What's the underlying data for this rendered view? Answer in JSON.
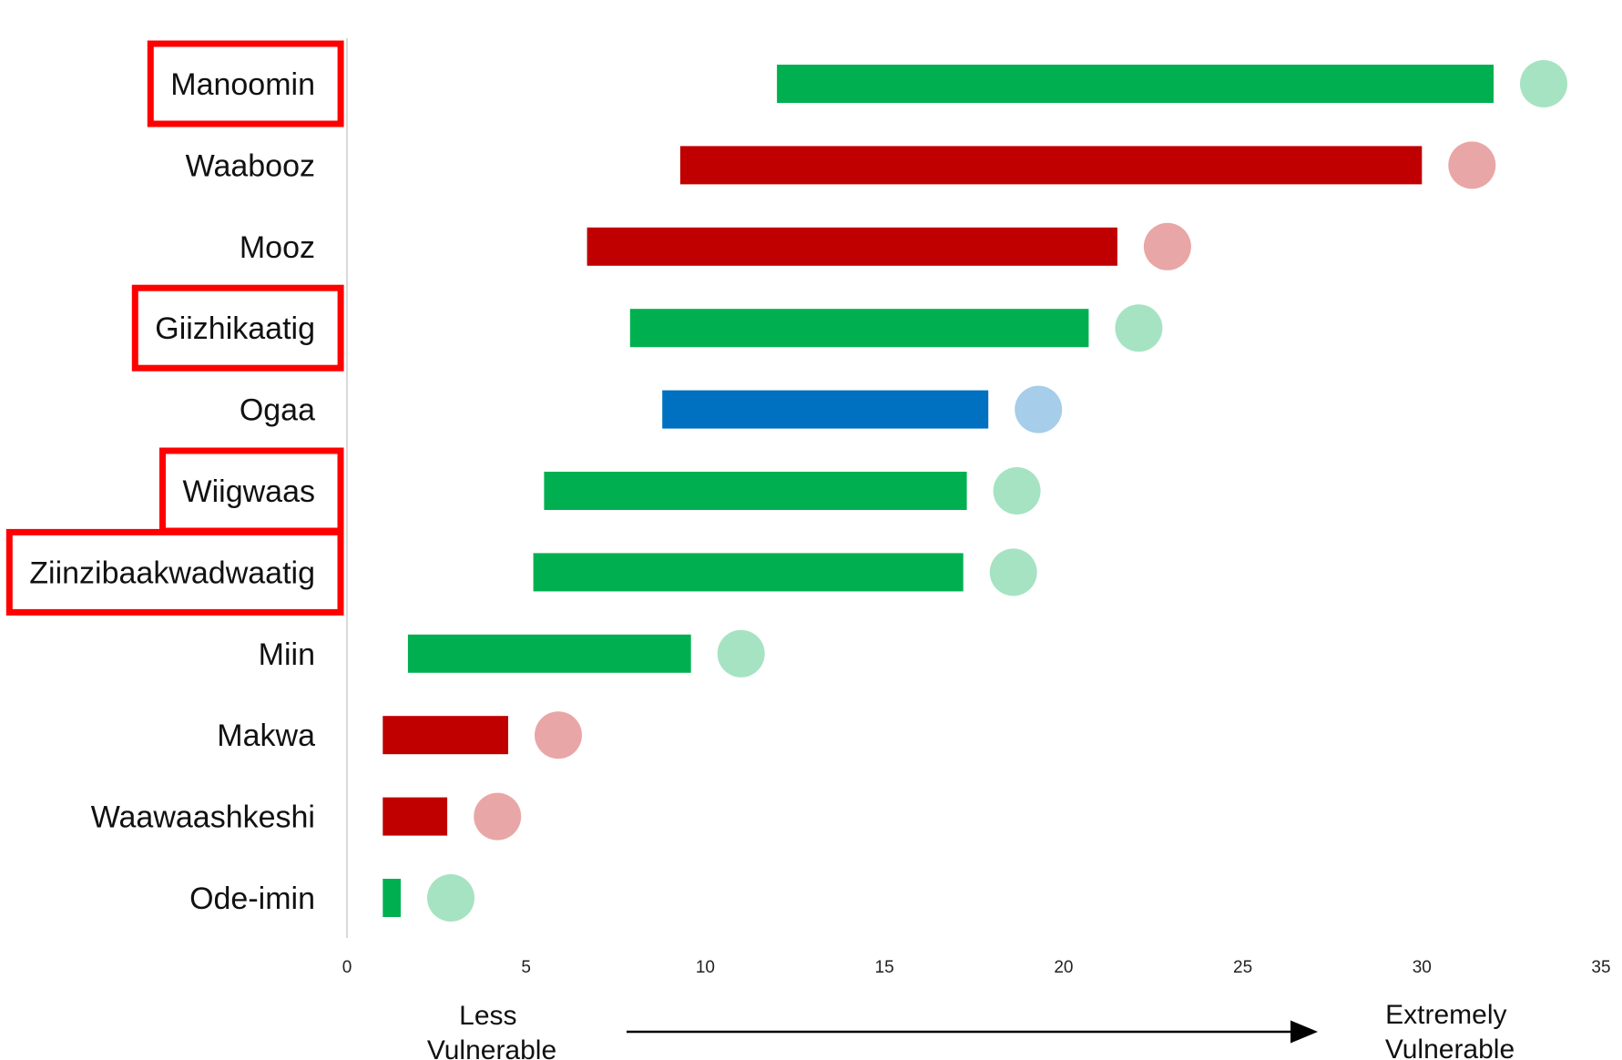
{
  "chart_data": {
    "type": "bar",
    "orientation": "horizontal-floating",
    "categories": [
      "Manoomin",
      "Waabooz",
      "Mooz",
      "Giizhikaatig",
      "Ogaa",
      "Wiigwaas",
      "Ziinzibaakwadwaatig",
      "Miin",
      "Makwa",
      "Waawaashkeshi",
      "Ode-imin"
    ],
    "ranges": [
      [
        12.0,
        32.0
      ],
      [
        9.3,
        30.0
      ],
      [
        6.7,
        21.5
      ],
      [
        7.9,
        20.7
      ],
      [
        8.8,
        17.9
      ],
      [
        5.5,
        17.3
      ],
      [
        5.2,
        17.2
      ],
      [
        1.7,
        9.6
      ],
      [
        1.0,
        4.5
      ],
      [
        1.0,
        2.8
      ],
      [
        1.0,
        1.5
      ]
    ],
    "bar_colors": [
      "#00b050",
      "#c00000",
      "#c00000",
      "#00b050",
      "#0070c0",
      "#00b050",
      "#00b050",
      "#00b050",
      "#c00000",
      "#c00000",
      "#00b050"
    ],
    "highlighted": [
      "Manoomin",
      "Giizhikaatig",
      "Wiigwaas",
      "Ziinzibaakwadwaatig"
    ],
    "highlight_color": "#ff0000",
    "icons": [
      "wild-rice-icon",
      "hare-icon",
      "moose-icon",
      "cedar-icon",
      "walleye-icon",
      "birch-icon",
      "maple-icon",
      "blueberry-icon",
      "bear-icon",
      "deer-icon",
      "strawberry-icon"
    ],
    "xlim": [
      0,
      35
    ],
    "xticks": [
      "0",
      "5",
      "10",
      "15",
      "20",
      "25",
      "30",
      "35"
    ],
    "xlabel_left": [
      "Less",
      "Vulnerable"
    ],
    "xlabel_right": [
      "Extremely",
      "Vulnerable"
    ],
    "grid": false,
    "legend": "none"
  }
}
